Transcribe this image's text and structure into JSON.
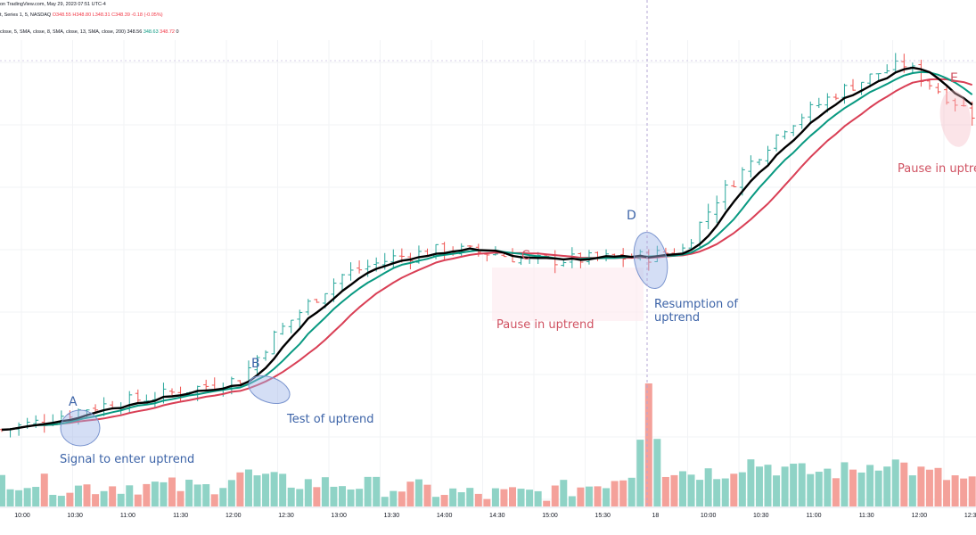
{
  "header": {
    "line1": "on TradingView.com, May 29, 2023 07:51 UTC-4",
    "line2_prefix": "t, Series 1, 5, NASDAQ",
    "o": "O348.55",
    "h": "H348.80",
    "l": "L348.31",
    "c": "C348.39",
    "chg": "-0.18 (-0.05%)",
    "line3_prefix": "close, 5, SMA, close, 8, SMA, close, 13, SMA, close, 200)",
    "ma1": "348.56",
    "ma2": "348.63",
    "ma3": "348.72",
    "ma4": "0"
  },
  "colors": {
    "up": "#26a69a",
    "down": "#ef5350",
    "vol_up": "#8fd3c6",
    "vol_down": "#f4a19a",
    "sma_fast": "#000000",
    "sma_mid": "#089981",
    "sma_slow": "#d93f55",
    "ann_blue": "#3d64a8",
    "ann_red": "#d05262",
    "grid": "#f2f3f5"
  },
  "annotations": [
    {
      "id": "A",
      "text": "A",
      "color": "blue"
    },
    {
      "id": "A-desc",
      "text": "Signal to enter uptrend",
      "color": "blue"
    },
    {
      "id": "B",
      "text": "B",
      "color": "blue"
    },
    {
      "id": "B-desc",
      "text": "Test of uptrend",
      "color": "blue"
    },
    {
      "id": "C",
      "text": "C",
      "color": "red"
    },
    {
      "id": "C-desc",
      "text": "Pause in uptrend",
      "color": "red"
    },
    {
      "id": "D",
      "text": "D",
      "color": "blue"
    },
    {
      "id": "D-desc1",
      "text": "Resumption of",
      "color": "blue"
    },
    {
      "id": "D-desc2",
      "text": "uptrend",
      "color": "blue"
    },
    {
      "id": "E",
      "text": "E",
      "color": "red"
    },
    {
      "id": "E-desc",
      "text": "Pause in uptre",
      "color": "red"
    }
  ],
  "chart_data": {
    "type": "bar",
    "subtype": "ohlc-with-volume",
    "interval": "5 min",
    "x_tick_labels": [
      "10:00",
      "10:30",
      "11:00",
      "11:30",
      "12:00",
      "12:30",
      "13:00",
      "13:30",
      "14:00",
      "14:30",
      "15:00",
      "15:30",
      "18",
      "10:00",
      "10:30",
      "11:00",
      "11:30",
      "12:00",
      "12:30"
    ],
    "price_keyframes": [
      [
        0,
        5
      ],
      [
        4,
        10
      ],
      [
        10,
        20
      ],
      [
        18,
        28
      ],
      [
        22,
        33
      ],
      [
        28,
        40
      ],
      [
        32,
        70
      ],
      [
        36,
        92
      ],
      [
        40,
        112
      ],
      [
        46,
        124
      ],
      [
        52,
        130
      ],
      [
        58,
        127
      ],
      [
        62,
        122
      ],
      [
        68,
        123
      ],
      [
        76,
        125
      ],
      [
        80,
        130
      ],
      [
        84,
        165
      ],
      [
        88,
        190
      ],
      [
        92,
        215
      ],
      [
        98,
        238
      ],
      [
        103,
        252
      ],
      [
        106,
        258
      ],
      [
        110,
        240
      ],
      [
        114,
        224
      ]
    ],
    "volume_keyframes": [
      [
        0,
        0.25
      ],
      [
        8,
        0.17
      ],
      [
        16,
        0.19
      ],
      [
        24,
        0.16
      ],
      [
        28,
        0.3
      ],
      [
        32,
        0.22
      ],
      [
        40,
        0.2
      ],
      [
        48,
        0.16
      ],
      [
        56,
        0.1
      ],
      [
        64,
        0.12
      ],
      [
        70,
        0.2
      ],
      [
        74,
        0.3
      ],
      [
        76,
        1.0
      ],
      [
        78,
        0.32
      ],
      [
        84,
        0.3
      ],
      [
        88,
        0.4
      ],
      [
        94,
        0.3
      ],
      [
        100,
        0.32
      ],
      [
        104,
        0.42
      ],
      [
        108,
        0.3
      ],
      [
        114,
        0.22
      ]
    ],
    "legend": [
      "SMA 5",
      "SMA 8",
      "SMA 13"
    ],
    "grid": true
  }
}
